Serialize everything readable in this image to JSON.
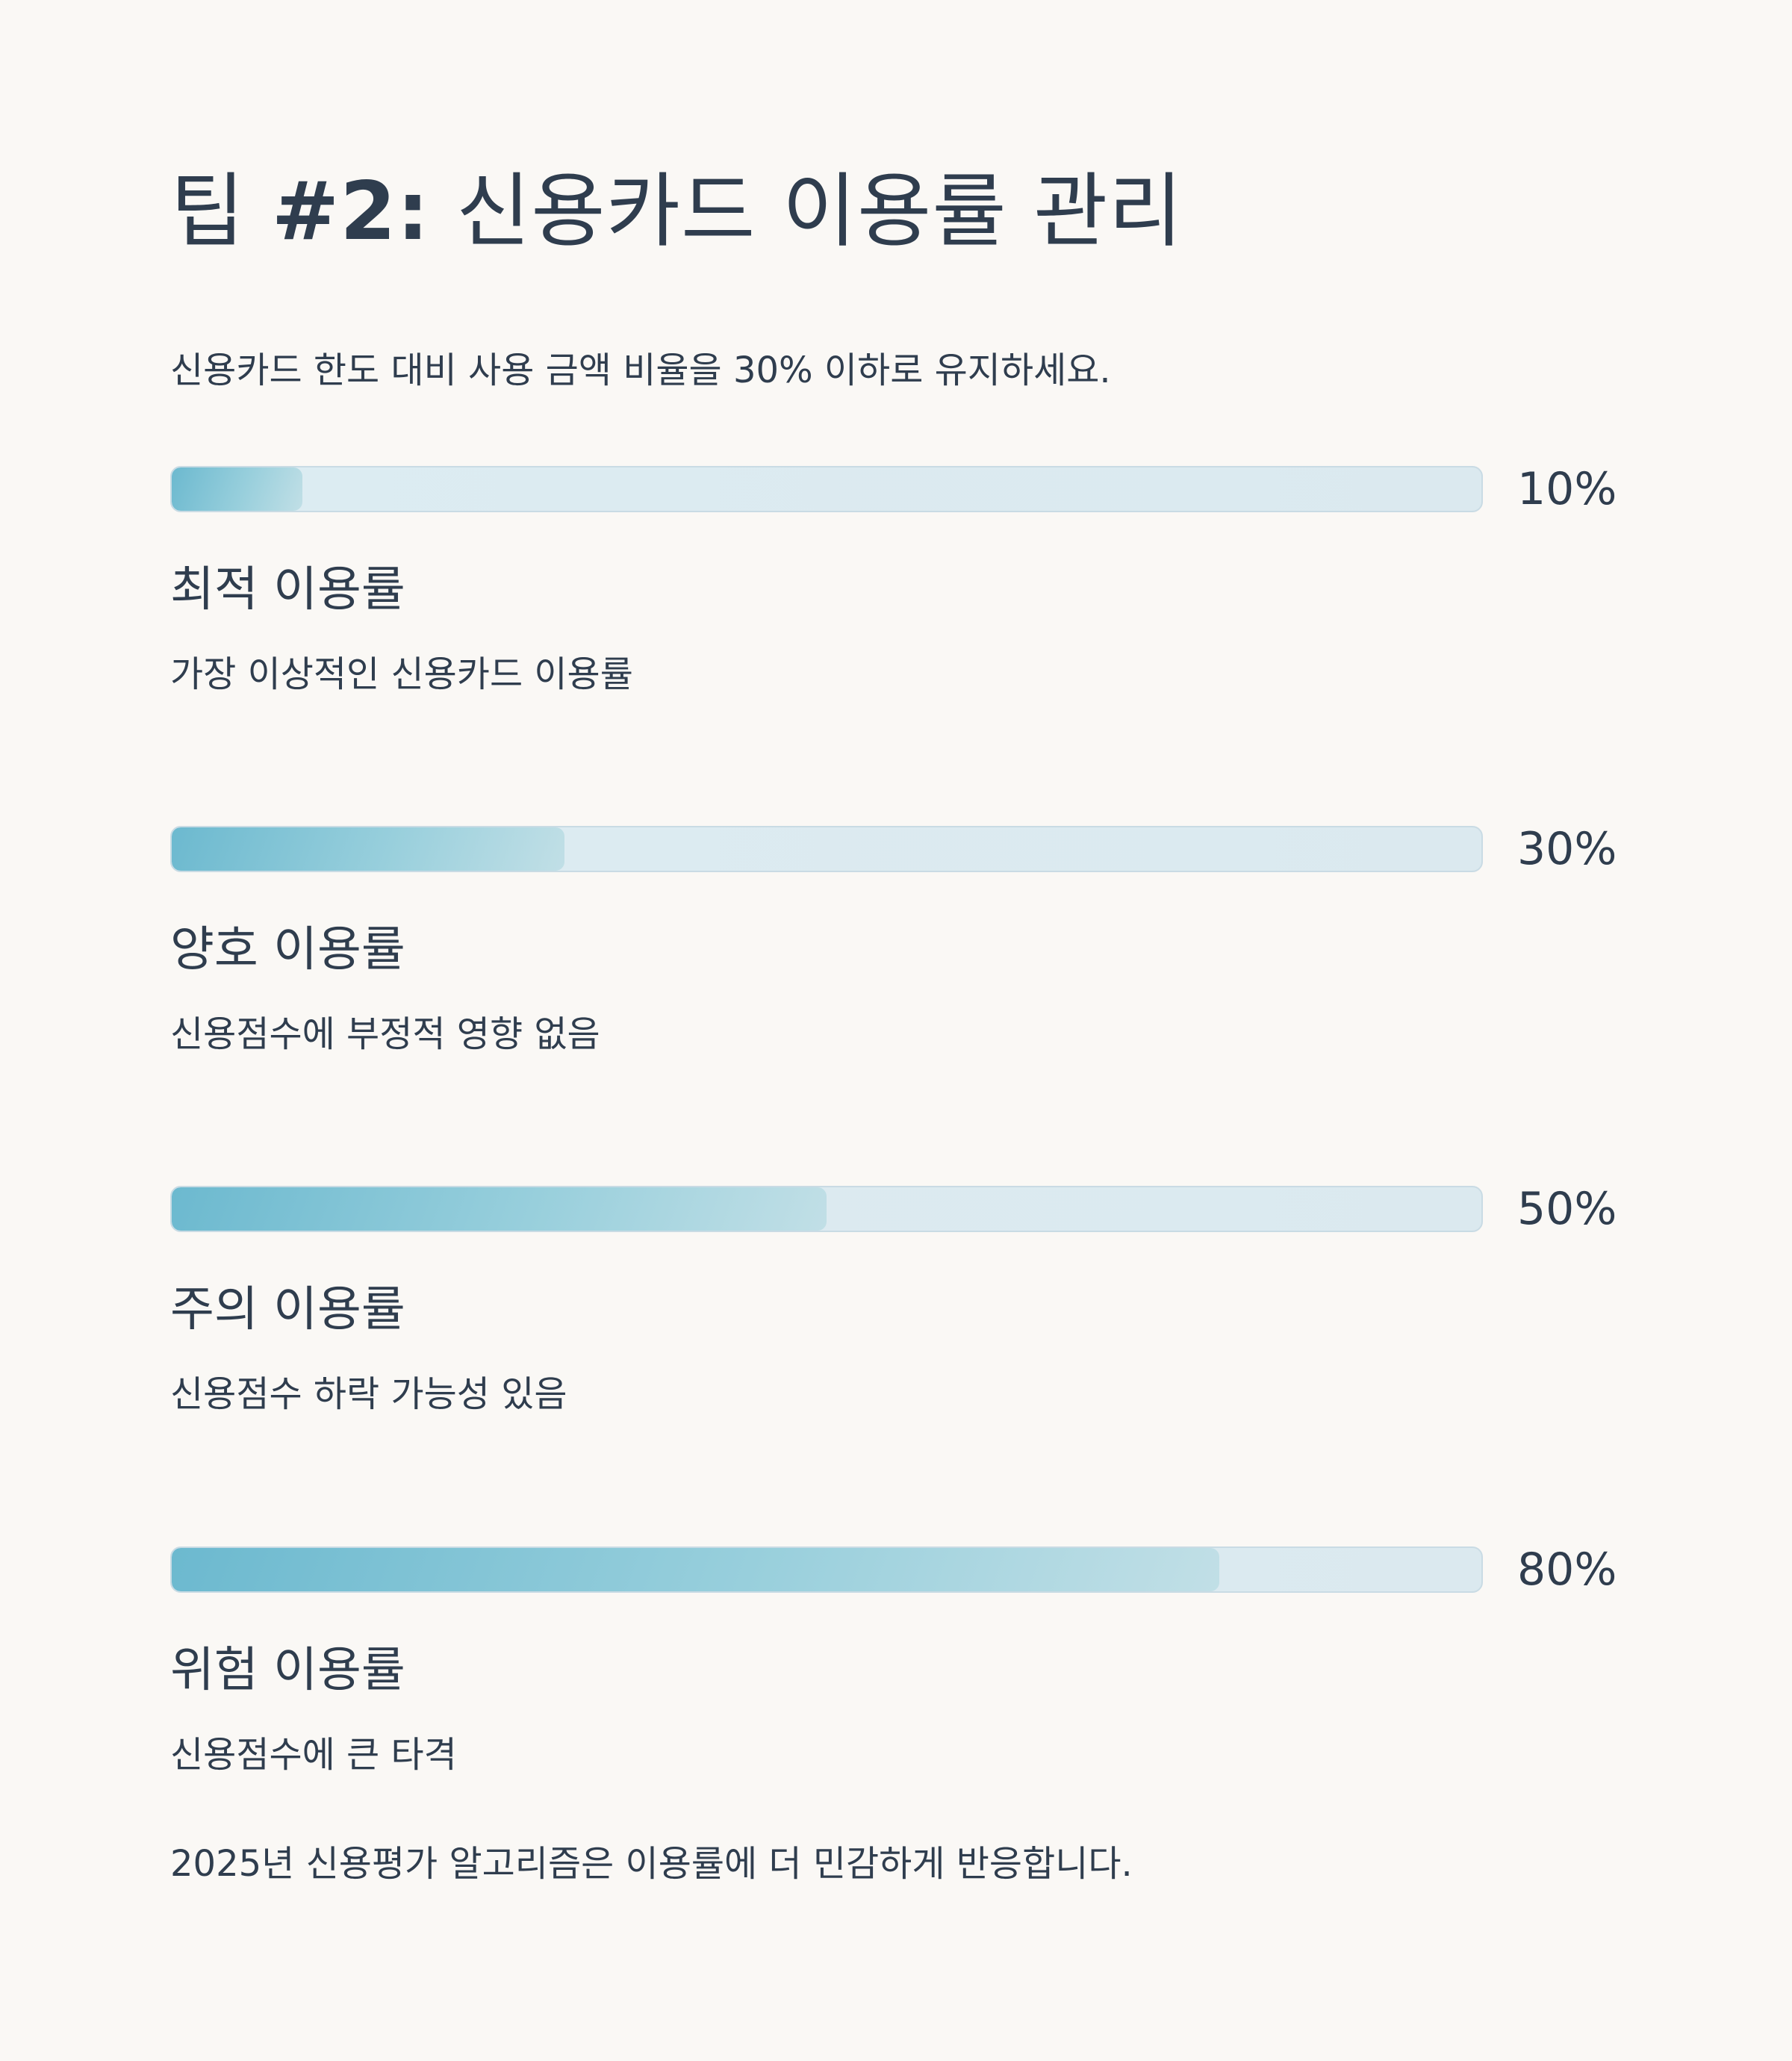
{
  "title": {
    "prefix": "팁",
    "accent": "#2:",
    "rest": "신용카드 이용률 관리"
  },
  "intro": "신용카드 한도 대비 사용 금액 비율을 30% 이하로 유지하세요.",
  "colors": {
    "background": "#faf8f5",
    "text": "#2f3d4e",
    "bar_track": "#dcecf2",
    "bar_fill_start": "#6cb9cf",
    "bar_fill_end": "#c1dfe6"
  },
  "tiers": [
    {
      "percent_label": "10%",
      "value": 10,
      "name": "최적 이용률",
      "description": "가장 이상적인 신용카드 이용률"
    },
    {
      "percent_label": "30%",
      "value": 30,
      "name": "양호 이용률",
      "description": "신용점수에 부정적 영향 없음"
    },
    {
      "percent_label": "50%",
      "value": 50,
      "name": "주의 이용률",
      "description": "신용점수 하락 가능성 있음"
    },
    {
      "percent_label": "80%",
      "value": 80,
      "name": "위험 이용률",
      "description": "신용점수에 큰 타격"
    }
  ],
  "footnote": "2025년 신용평가 알고리즘은 이용률에 더 민감하게 반응합니다."
}
